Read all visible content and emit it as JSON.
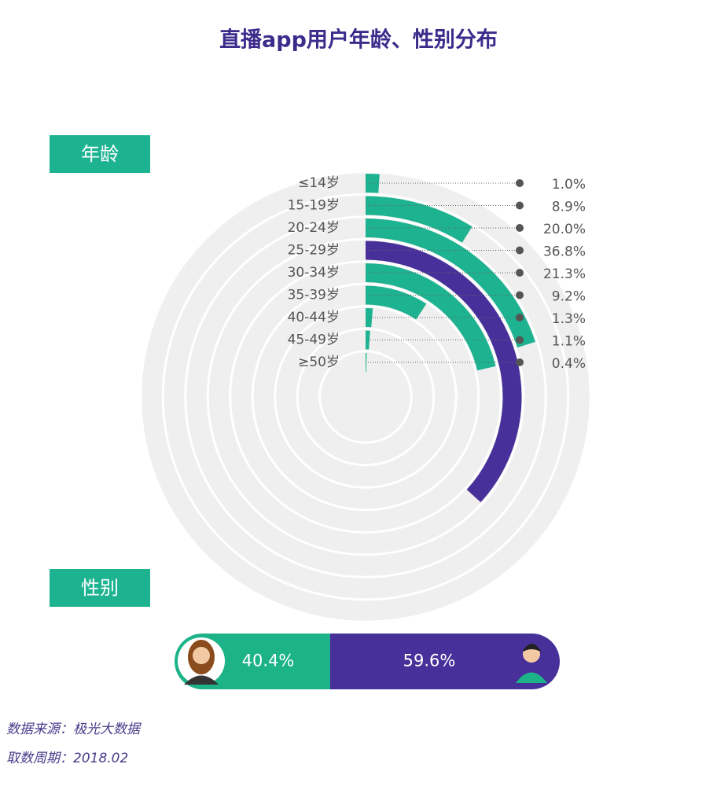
{
  "title": "直播app用户年龄、性别分布",
  "chart_data": [
    {
      "type": "radial-bar",
      "title": "年龄",
      "categories": [
        "≤14岁",
        "15-19岁",
        "20-24岁",
        "25-29岁",
        "30-34岁",
        "35-39岁",
        "40-44岁",
        "45-49岁",
        "≥50岁"
      ],
      "values": [
        1.0,
        8.9,
        20.0,
        36.8,
        21.3,
        9.2,
        1.3,
        1.1,
        0.4
      ],
      "value_labels": [
        "1.0%",
        "8.9%",
        "20.0%",
        "36.8%",
        "21.3%",
        "9.2%",
        "1.3%",
        "1.1%",
        "0.4%"
      ],
      "colors": [
        "#1db391",
        "#1db391",
        "#1db391",
        "#47309a",
        "#1db391",
        "#1db391",
        "#1db391",
        "#1db391",
        "#1db391"
      ]
    },
    {
      "type": "stacked-bar",
      "title": "性别",
      "values": [
        40.4,
        59.6
      ],
      "value_labels": [
        "40.4%",
        "59.6%"
      ],
      "colors": [
        "#1db388",
        "#47309a"
      ]
    }
  ],
  "footer": [
    "数据来源：极光大数据",
    "取数周期：2018.02"
  ]
}
